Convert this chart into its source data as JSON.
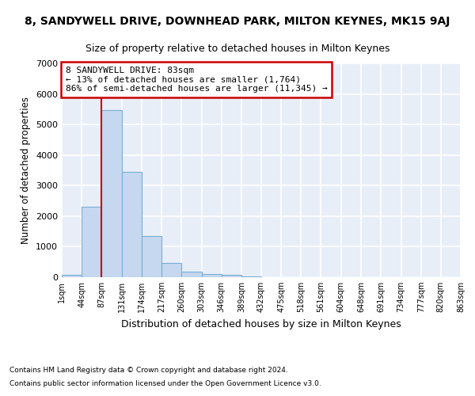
{
  "title_top": "8, SANDYWELL DRIVE, DOWNHEAD PARK, MILTON KEYNES, MK15 9AJ",
  "title_sub": "Size of property relative to detached houses in Milton Keynes",
  "xlabel": "Distribution of detached houses by size in Milton Keynes",
  "ylabel": "Number of detached properties",
  "footnote1": "Contains HM Land Registry data © Crown copyright and database right 2024.",
  "footnote2": "Contains public sector information licensed under the Open Government Licence v3.0.",
  "annotation_line1": "8 SANDYWELL DRIVE: 83sqm",
  "annotation_line2": "← 13% of detached houses are smaller (1,764)",
  "annotation_line3": "86% of semi-detached houses are larger (11,345) →",
  "bin_edges": [
    1,
    44,
    87,
    131,
    174,
    217,
    260,
    303,
    346,
    389,
    432,
    475,
    518,
    561,
    604,
    648,
    691,
    734,
    777,
    820,
    863
  ],
  "bar_heights": [
    85,
    2300,
    5480,
    3450,
    1350,
    470,
    175,
    95,
    75,
    18,
    8,
    3,
    2,
    1,
    1,
    1,
    0,
    0,
    0,
    0
  ],
  "bar_color": "#c5d8f0",
  "bar_edge_color": "#7aafd4",
  "vline_color": "#cc0000",
  "vline_x": 87,
  "annotation_box_color": "#cc0000",
  "background_color": "#e8eef8",
  "ylim": [
    0,
    7000
  ],
  "yticks": [
    0,
    1000,
    2000,
    3000,
    4000,
    5000,
    6000,
    7000
  ],
  "grid_color": "#ffffff",
  "title_fontsize": 10,
  "subtitle_fontsize": 9
}
